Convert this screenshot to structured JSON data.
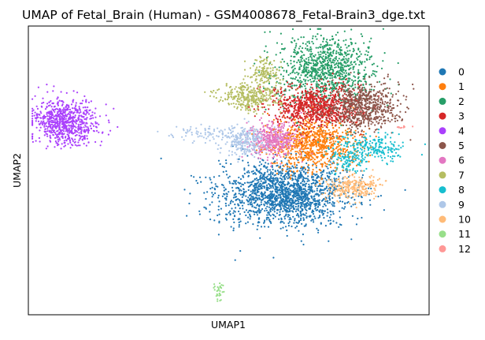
{
  "chart_data": {
    "type": "scatter",
    "title": "UMAP of Fetal_Brain (Human) - GSM4008678_Fetal-Brain3_dge.txt",
    "xlabel": "UMAP1",
    "ylabel": "UMAP2",
    "xlim": [
      0,
      100
    ],
    "ylim": [
      0,
      100
    ],
    "xticks": [],
    "yticks": [],
    "grid": false,
    "legend_position": "right",
    "clusters": [
      {
        "name": "0",
        "color": "#1f77b4",
        "n": 1700,
        "blobs": [
          {
            "cx": 64,
            "cy": 42,
            "sx": 8.0,
            "sy": 5.5,
            "w": 1
          }
        ]
      },
      {
        "name": "1",
        "color": "#ff7f0e",
        "n": 850,
        "blobs": [
          {
            "cx": 71,
            "cy": 59,
            "sx": 5.5,
            "sy": 4.5,
            "w": 1
          }
        ]
      },
      {
        "name": "2",
        "color": "#279e68",
        "n": 1000,
        "blobs": [
          {
            "cx": 74,
            "cy": 85,
            "sx": 6.0,
            "sy": 6.0,
            "w": 1
          }
        ]
      },
      {
        "name": "3",
        "color": "#d62728",
        "n": 850,
        "blobs": [
          {
            "cx": 72,
            "cy": 72,
            "sx": 5.5,
            "sy": 3.5,
            "w": 1
          }
        ]
      },
      {
        "name": "4",
        "color": "#aa40fc",
        "n": 750,
        "blobs": [
          {
            "cx": 9.5,
            "cy": 67,
            "sx": 4.2,
            "sy": 3.8,
            "w": 1
          }
        ]
      },
      {
        "name": "5",
        "color": "#8c564b",
        "n": 650,
        "blobs": [
          {
            "cx": 84,
            "cy": 72,
            "sx": 4.2,
            "sy": 4.0,
            "w": 1
          }
        ]
      },
      {
        "name": "6",
        "color": "#e377c2",
        "n": 400,
        "blobs": [
          {
            "cx": 61,
            "cy": 61,
            "sx": 3.0,
            "sy": 3.2,
            "w": 1
          }
        ]
      },
      {
        "name": "7",
        "color": "#b5bd61",
        "n": 450,
        "blobs": [
          {
            "cx": 55,
            "cy": 76,
            "sx": 4.0,
            "sy": 2.4,
            "w": 0.75
          },
          {
            "cx": 59,
            "cy": 84,
            "sx": 2.0,
            "sy": 2.5,
            "w": 0.25
          }
        ]
      },
      {
        "name": "8",
        "color": "#17becf",
        "n": 320,
        "blobs": [
          {
            "cx": 85,
            "cy": 58,
            "sx": 4.5,
            "sy": 2.5,
            "w": 0.7
          },
          {
            "cx": 80,
            "cy": 53,
            "sx": 2.0,
            "sy": 2.0,
            "w": 0.3
          }
        ]
      },
      {
        "name": "9",
        "color": "#aec7e8",
        "n": 330,
        "blobs": [
          {
            "cx": 54,
            "cy": 60,
            "sx": 3.0,
            "sy": 2.5,
            "w": 0.7
          },
          {
            "cx": 45,
            "cy": 63,
            "sx": 5.0,
            "sy": 1.4,
            "w": 0.3
          }
        ]
      },
      {
        "name": "10",
        "color": "#ffbb78",
        "n": 260,
        "blobs": [
          {
            "cx": 81,
            "cy": 44,
            "sx": 3.5,
            "sy": 2.2,
            "w": 1
          }
        ]
      },
      {
        "name": "11",
        "color": "#98df8a",
        "n": 30,
        "blobs": [
          {
            "cx": 47.5,
            "cy": 8.5,
            "sx": 0.6,
            "sy": 1.6,
            "w": 1
          }
        ]
      },
      {
        "name": "12",
        "color": "#ff9896",
        "n": 10,
        "blobs": [
          {
            "cx": 93.5,
            "cy": 65,
            "sx": 0.7,
            "sy": 0.3,
            "w": 1
          }
        ]
      }
    ]
  }
}
